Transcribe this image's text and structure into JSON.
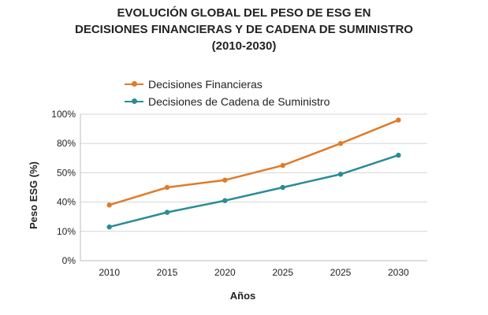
{
  "chart_data": {
    "type": "line",
    "title_lines": [
      "EVOLUCIÓN GLOBAL DEL PESO DE ESG EN",
      "DECISIONES FINANCIERAS Y DE CADENA DE SUMINISTRO",
      "(2010-2030)"
    ],
    "xlabel": "Años",
    "ylabel": "Peso ESG (%)",
    "categories": [
      "2010",
      "2015",
      "2020",
      "2025",
      "2025",
      "2030"
    ],
    "y_tick_labels": [
      "0%",
      "10%",
      "40%",
      "50%",
      "80%",
      "100%"
    ],
    "ylim": [
      0,
      5
    ],
    "grid": true,
    "legend_position": "top-left",
    "series": [
      {
        "name": "Decisiones Financieras",
        "color": "#E07B2A",
        "values": [
          1.9,
          2.5,
          2.75,
          3.25,
          4.0,
          4.8
        ]
      },
      {
        "name": "Decisiones de Cadena de Suministro",
        "color": "#2A8C96",
        "values": [
          1.15,
          1.65,
          2.05,
          2.5,
          2.95,
          3.6
        ]
      }
    ]
  }
}
